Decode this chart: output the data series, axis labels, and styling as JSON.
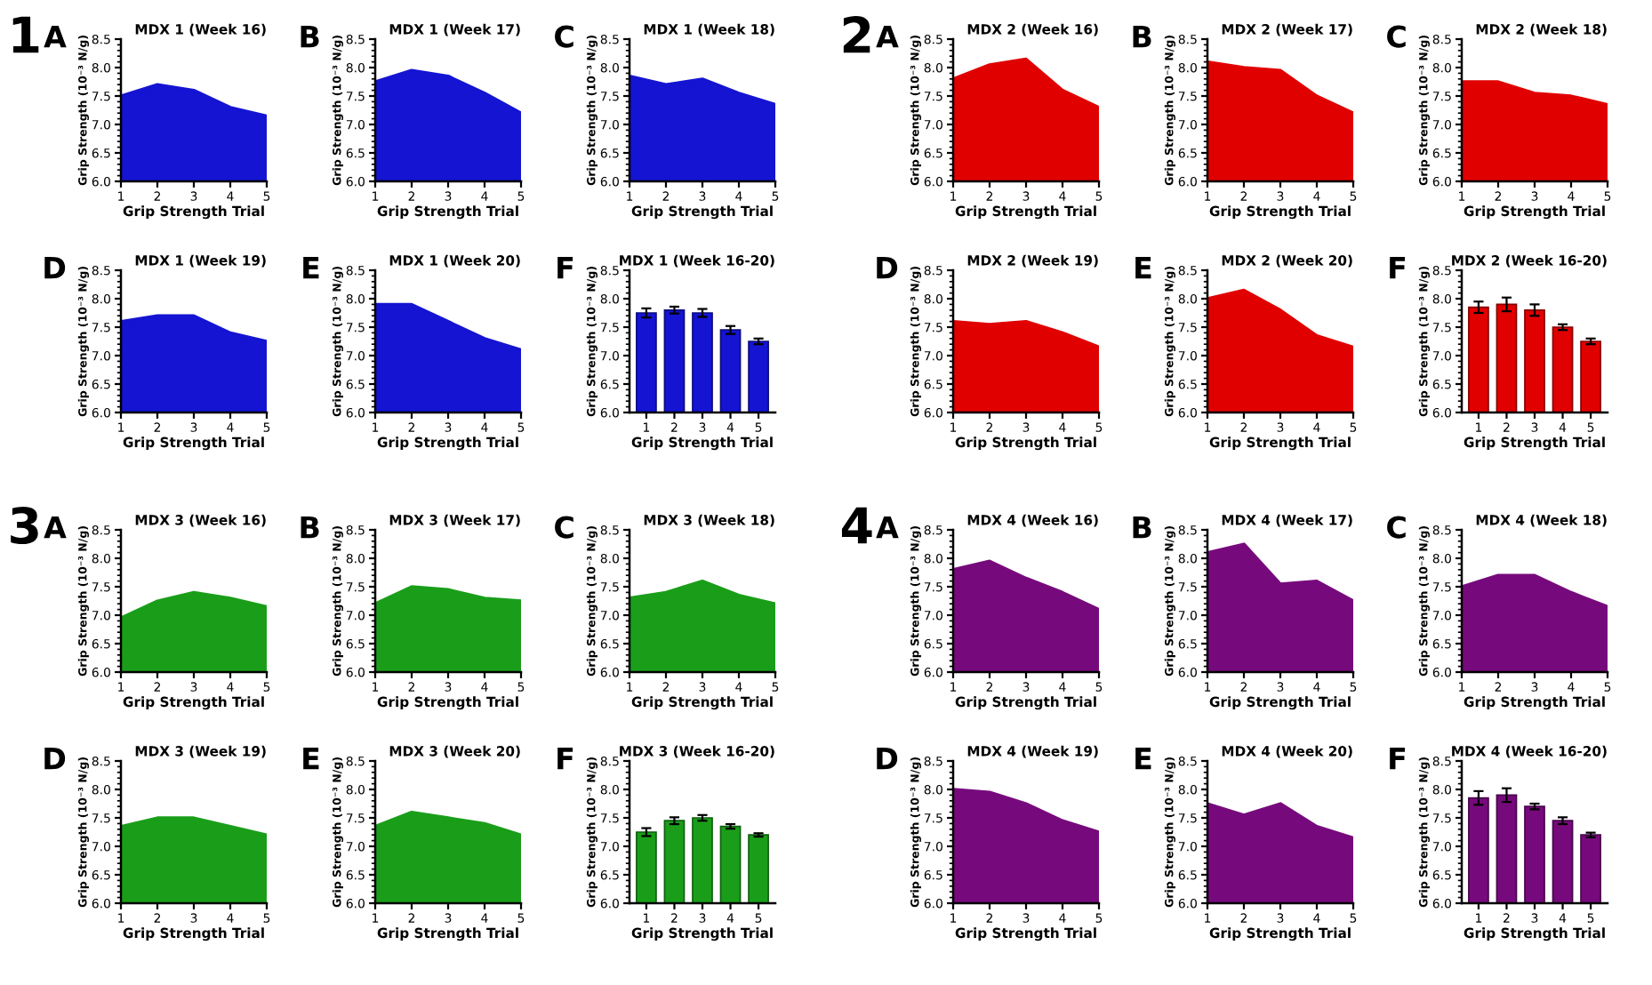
{
  "chart_data": [
    {
      "type": "area",
      "title": "MDX 1 (Week 16)",
      "annotations": [
        "1",
        "A"
      ],
      "xlabel": "Grip Strength Trial",
      "ylabel": "Grip Strength (10⁻³ N/g)",
      "color": "#1414d2",
      "x": [
        1,
        2,
        3,
        4,
        5
      ],
      "values": [
        7.5,
        7.7,
        7.6,
        7.3,
        7.15
      ],
      "xlim": [
        1,
        5
      ],
      "xticks": [
        1,
        2,
        3,
        4,
        5
      ],
      "ylim": [
        6,
        8.5
      ],
      "yticks": [
        {
          "value": 6,
          "label": "6.0"
        },
        6.5,
        {
          "value": 7,
          "label": "7.0"
        },
        7.5,
        {
          "value": 8,
          "label": "8.0"
        },
        8.5
      ]
    },
    {
      "type": "area",
      "title": "MDX 1 (Week 17)",
      "annotations": [
        "B"
      ],
      "xlabel": "Grip Strength Trial",
      "ylabel": "Grip Strength (10⁻³ N/g)",
      "color": "#1414d2",
      "x": [
        1,
        2,
        3,
        4,
        5
      ],
      "values": [
        7.75,
        7.95,
        7.85,
        7.55,
        7.2
      ],
      "xlim": [
        1,
        5
      ],
      "xticks": [
        1,
        2,
        3,
        4,
        5
      ],
      "ylim": [
        6,
        8.5
      ],
      "yticks": [
        {
          "value": 6,
          "label": "6.0"
        },
        6.5,
        {
          "value": 7,
          "label": "7.0"
        },
        7.5,
        {
          "value": 8,
          "label": "8.0"
        },
        8.5
      ]
    },
    {
      "type": "area",
      "title": "MDX 1 (Week 18)",
      "annotations": [
        "C"
      ],
      "xlabel": "Grip Strength Trial",
      "ylabel": "Grip Strength (10⁻³ N/g)",
      "color": "#1414d2",
      "x": [
        1,
        2,
        3,
        4,
        5
      ],
      "values": [
        7.85,
        7.7,
        7.8,
        7.55,
        7.35
      ],
      "xlim": [
        1,
        5
      ],
      "xticks": [
        1,
        2,
        3,
        4,
        5
      ],
      "ylim": [
        6,
        8.5
      ],
      "yticks": [
        {
          "value": 6,
          "label": "6.0"
        },
        6.5,
        {
          "value": 7,
          "label": "7.0"
        },
        7.5,
        {
          "value": 8,
          "label": "8.0"
        },
        8.5
      ]
    },
    {
      "type": "area",
      "title": "MDX 1 (Week 19)",
      "annotations": [
        "D"
      ],
      "xlabel": "Grip Strength Trial",
      "ylabel": "Grip Strength (10⁻³ N/g)",
      "color": "#1414d2",
      "x": [
        1,
        2,
        3,
        4,
        5
      ],
      "values": [
        7.6,
        7.7,
        7.7,
        7.4,
        7.25
      ],
      "xlim": [
        1,
        5
      ],
      "xticks": [
        1,
        2,
        3,
        4,
        5
      ],
      "ylim": [
        6,
        8.5
      ],
      "yticks": [
        {
          "value": 6,
          "label": "6.0"
        },
        6.5,
        {
          "value": 7,
          "label": "7.0"
        },
        7.5,
        {
          "value": 8,
          "label": "8.0"
        },
        8.5
      ]
    },
    {
      "type": "area",
      "title": "MDX 1 (Week 20)",
      "annotations": [
        "E"
      ],
      "xlabel": "Grip Strength Trial",
      "ylabel": "Grip Strength (10⁻³ N/g)",
      "color": "#1414d2",
      "x": [
        1,
        2,
        3,
        4,
        5
      ],
      "values": [
        7.9,
        7.9,
        7.6,
        7.3,
        7.1
      ],
      "xlim": [
        1,
        5
      ],
      "xticks": [
        1,
        2,
        3,
        4,
        5
      ],
      "ylim": [
        6,
        8.5
      ],
      "yticks": [
        {
          "value": 6,
          "label": "6.0"
        },
        6.5,
        {
          "value": 7,
          "label": "7.0"
        },
        7.5,
        {
          "value": 8,
          "label": "8.0"
        },
        8.5
      ]
    },
    {
      "type": "bar",
      "title": "MDX 1 (Week 16-20)",
      "annotations": [
        "F"
      ],
      "xlabel": "Grip Strength Trial",
      "ylabel": "Grip Strength (10⁻³ N/g)",
      "color": "#1414d2",
      "categories": [
        "1",
        "2",
        "3",
        "4",
        "5"
      ],
      "values": [
        7.75,
        7.8,
        7.75,
        7.45,
        7.25
      ],
      "errors": [
        0.08,
        0.06,
        0.07,
        0.07,
        0.05
      ],
      "ylim": [
        6,
        8.5
      ],
      "yticks": [
        {
          "value": 6,
          "label": "6.0"
        },
        6.5,
        {
          "value": 7,
          "label": "7.0"
        },
        7.5,
        {
          "value": 8,
          "label": "8.0"
        },
        8.5
      ]
    },
    {
      "type": "area",
      "title": "MDX 2 (Week 16)",
      "annotations": [
        "2",
        "A"
      ],
      "xlabel": "Grip Strength Trial",
      "ylabel": "Grip Strength (10⁻³ N/g)",
      "color": "#e00000",
      "x": [
        1,
        2,
        3,
        4,
        5
      ],
      "values": [
        7.8,
        8.05,
        8.15,
        7.6,
        7.3
      ],
      "xlim": [
        1,
        5
      ],
      "xticks": [
        1,
        2,
        3,
        4,
        5
      ],
      "ylim": [
        6,
        8.5
      ],
      "yticks": [
        {
          "value": 6,
          "label": "6.0"
        },
        6.5,
        {
          "value": 7,
          "label": "7.0"
        },
        7.5,
        {
          "value": 8,
          "label": "8.0"
        },
        8.5
      ]
    },
    {
      "type": "area",
      "title": "MDX 2 (Week 17)",
      "annotations": [
        "B"
      ],
      "xlabel": "Grip Strength Trial",
      "ylabel": "Grip Strength (10⁻³ N/g)",
      "color": "#e00000",
      "x": [
        1,
        2,
        3,
        4,
        5
      ],
      "values": [
        8.1,
        8.0,
        7.95,
        7.5,
        7.2
      ],
      "xlim": [
        1,
        5
      ],
      "xticks": [
        1,
        2,
        3,
        4,
        5
      ],
      "ylim": [
        6,
        8.5
      ],
      "yticks": [
        {
          "value": 6,
          "label": "6.0"
        },
        6.5,
        {
          "value": 7,
          "label": "7.0"
        },
        7.5,
        {
          "value": 8,
          "label": "8.0"
        },
        8.5
      ]
    },
    {
      "type": "area",
      "title": "MDX 2 (Week 18)",
      "annotations": [
        "C"
      ],
      "xlabel": "Grip Strength Trial",
      "ylabel": "Grip Strength (10⁻³ N/g)",
      "color": "#e00000",
      "x": [
        1,
        2,
        3,
        4,
        5
      ],
      "values": [
        7.75,
        7.75,
        7.55,
        7.5,
        7.35
      ],
      "xlim": [
        1,
        5
      ],
      "xticks": [
        1,
        2,
        3,
        4,
        5
      ],
      "ylim": [
        6,
        8.5
      ],
      "yticks": [
        {
          "value": 6,
          "label": "6.0"
        },
        6.5,
        {
          "value": 7,
          "label": "7.0"
        },
        7.5,
        {
          "value": 8,
          "label": "8.0"
        },
        8.5
      ]
    },
    {
      "type": "area",
      "title": "MDX 2 (Week 19)",
      "annotations": [
        "D"
      ],
      "xlabel": "Grip Strength Trial",
      "ylabel": "Grip Strength (10⁻³ N/g)",
      "color": "#e00000",
      "x": [
        1,
        2,
        3,
        4,
        5
      ],
      "values": [
        7.6,
        7.55,
        7.6,
        7.4,
        7.15
      ],
      "xlim": [
        1,
        5
      ],
      "xticks": [
        1,
        2,
        3,
        4,
        5
      ],
      "ylim": [
        6,
        8.5
      ],
      "yticks": [
        {
          "value": 6,
          "label": "6.0"
        },
        6.5,
        {
          "value": 7,
          "label": "7.0"
        },
        7.5,
        {
          "value": 8,
          "label": "8.0"
        },
        8.5
      ]
    },
    {
      "type": "area",
      "title": "MDX 2 (Week 20)",
      "annotations": [
        "E"
      ],
      "xlabel": "Grip Strength Trial",
      "ylabel": "Grip Strength (10⁻³ N/g)",
      "color": "#e00000",
      "x": [
        1,
        2,
        3,
        4,
        5
      ],
      "values": [
        8.0,
        8.15,
        7.8,
        7.35,
        7.15
      ],
      "xlim": [
        1,
        5
      ],
      "xticks": [
        1,
        2,
        3,
        4,
        5
      ],
      "ylim": [
        6,
        8.5
      ],
      "yticks": [
        {
          "value": 6,
          "label": "6.0"
        },
        6.5,
        {
          "value": 7,
          "label": "7.0"
        },
        7.5,
        {
          "value": 8,
          "label": "8.0"
        },
        8.5
      ]
    },
    {
      "type": "bar",
      "title": "MDX 2 (Week 16-20)",
      "annotations": [
        "F"
      ],
      "xlabel": "Grip Strength Trial",
      "ylabel": "Grip Strength (10⁻³ N/g)",
      "color": "#e00000",
      "categories": [
        "1",
        "2",
        "3",
        "4",
        "5"
      ],
      "values": [
        7.85,
        7.9,
        7.8,
        7.5,
        7.25
      ],
      "errors": [
        0.1,
        0.12,
        0.1,
        0.05,
        0.05
      ],
      "ylim": [
        6,
        8.5
      ],
      "yticks": [
        {
          "value": 6,
          "label": "6.0"
        },
        6.5,
        {
          "value": 7,
          "label": "7.0"
        },
        7.5,
        {
          "value": 8,
          "label": "8.0"
        },
        8.5
      ]
    },
    {
      "type": "area",
      "title": "MDX 3 (Week 16)",
      "annotations": [
        "3",
        "A"
      ],
      "xlabel": "Grip Strength Trial",
      "ylabel": "Grip Strength (10⁻³ N/g)",
      "color": "#1a9e1a",
      "x": [
        1,
        2,
        3,
        4,
        5
      ],
      "values": [
        6.95,
        7.25,
        7.4,
        7.3,
        7.15
      ],
      "xlim": [
        1,
        5
      ],
      "xticks": [
        1,
        2,
        3,
        4,
        5
      ],
      "ylim": [
        6,
        8.5
      ],
      "yticks": [
        {
          "value": 6,
          "label": "6.0"
        },
        6.5,
        {
          "value": 7,
          "label": "7.0"
        },
        7.5,
        {
          "value": 8,
          "label": "8.0"
        },
        8.5
      ]
    },
    {
      "type": "area",
      "title": "MDX 3 (Week 17)",
      "annotations": [
        "B"
      ],
      "xlabel": "Grip Strength Trial",
      "ylabel": "Grip Strength (10⁻³ N/g)",
      "color": "#1a9e1a",
      "x": [
        1,
        2,
        3,
        4,
        5
      ],
      "values": [
        7.2,
        7.5,
        7.45,
        7.3,
        7.25
      ],
      "xlim": [
        1,
        5
      ],
      "xticks": [
        1,
        2,
        3,
        4,
        5
      ],
      "ylim": [
        6,
        8.5
      ],
      "yticks": [
        {
          "value": 6,
          "label": "6.0"
        },
        6.5,
        {
          "value": 7,
          "label": "7.0"
        },
        7.5,
        {
          "value": 8,
          "label": "8.0"
        },
        8.5
      ]
    },
    {
      "type": "area",
      "title": "MDX 3 (Week 18)",
      "annotations": [
        "C"
      ],
      "xlabel": "Grip Strength Trial",
      "ylabel": "Grip Strength (10⁻³ N/g)",
      "color": "#1a9e1a",
      "x": [
        1,
        2,
        3,
        4,
        5
      ],
      "values": [
        7.3,
        7.4,
        7.6,
        7.35,
        7.2
      ],
      "xlim": [
        1,
        5
      ],
      "xticks": [
        1,
        2,
        3,
        4,
        5
      ],
      "ylim": [
        6,
        8.5
      ],
      "yticks": [
        {
          "value": 6,
          "label": "6.0"
        },
        6.5,
        {
          "value": 7,
          "label": "7.0"
        },
        7.5,
        {
          "value": 8,
          "label": "8.0"
        },
        8.5
      ]
    },
    {
      "type": "area",
      "title": "MDX 3 (Week 19)",
      "annotations": [
        "D"
      ],
      "xlabel": "Grip Strength Trial",
      "ylabel": "Grip Strength (10⁻³ N/g)",
      "color": "#1a9e1a",
      "x": [
        1,
        2,
        3,
        4,
        5
      ],
      "values": [
        7.35,
        7.5,
        7.5,
        7.35,
        7.2
      ],
      "xlim": [
        1,
        5
      ],
      "xticks": [
        1,
        2,
        3,
        4,
        5
      ],
      "ylim": [
        6,
        8.5
      ],
      "yticks": [
        {
          "value": 6,
          "label": "6.0"
        },
        6.5,
        {
          "value": 7,
          "label": "7.0"
        },
        7.5,
        {
          "value": 8,
          "label": "8.0"
        },
        8.5
      ]
    },
    {
      "type": "area",
      "title": "MDX 3 (Week 20)",
      "annotations": [
        "E"
      ],
      "xlabel": "Grip Strength Trial",
      "ylabel": "Grip Strength (10⁻³ N/g)",
      "color": "#1a9e1a",
      "x": [
        1,
        2,
        3,
        4,
        5
      ],
      "values": [
        7.35,
        7.6,
        7.5,
        7.4,
        7.2
      ],
      "xlim": [
        1,
        5
      ],
      "xticks": [
        1,
        2,
        3,
        4,
        5
      ],
      "ylim": [
        6,
        8.5
      ],
      "yticks": [
        {
          "value": 6,
          "label": "6.0"
        },
        6.5,
        {
          "value": 7,
          "label": "7.0"
        },
        7.5,
        {
          "value": 8,
          "label": "8.0"
        },
        8.5
      ]
    },
    {
      "type": "bar",
      "title": "MDX 3 (Week 16-20)",
      "annotations": [
        "F"
      ],
      "xlabel": "Grip Strength Trial",
      "ylabel": "Grip Strength (10⁻³ N/g)",
      "color": "#1a9e1a",
      "categories": [
        "1",
        "2",
        "3",
        "4",
        "5"
      ],
      "values": [
        7.25,
        7.45,
        7.5,
        7.35,
        7.2
      ],
      "errors": [
        0.07,
        0.06,
        0.05,
        0.04,
        0.03
      ],
      "ylim": [
        6,
        8.5
      ],
      "yticks": [
        {
          "value": 6,
          "label": "6.0"
        },
        6.5,
        {
          "value": 7,
          "label": "7.0"
        },
        7.5,
        {
          "value": 8,
          "label": "8.0"
        },
        8.5
      ]
    },
    {
      "type": "area",
      "title": "MDX 4 (Week 16)",
      "annotations": [
        "4",
        "A"
      ],
      "xlabel": "Grip Strength Trial",
      "ylabel": "Grip Strength (10⁻³ N/g)",
      "color": "#760a7c",
      "x": [
        1,
        2,
        3,
        4,
        5
      ],
      "values": [
        7.8,
        7.95,
        7.65,
        7.4,
        7.1
      ],
      "xlim": [
        1,
        5
      ],
      "xticks": [
        1,
        2,
        3,
        4,
        5
      ],
      "ylim": [
        6,
        8.5
      ],
      "yticks": [
        {
          "value": 6,
          "label": "6.0"
        },
        6.5,
        {
          "value": 7,
          "label": "7.0"
        },
        7.5,
        {
          "value": 8,
          "label": "8.0"
        },
        8.5
      ]
    },
    {
      "type": "area",
      "title": "MDX 4 (Week 17)",
      "annotations": [
        "B"
      ],
      "xlabel": "Grip Strength Trial",
      "ylabel": "Grip Strength (10⁻³ N/g)",
      "color": "#760a7c",
      "x": [
        1,
        2,
        3,
        4,
        5
      ],
      "values": [
        8.1,
        8.25,
        7.55,
        7.6,
        7.25
      ],
      "xlim": [
        1,
        5
      ],
      "xticks": [
        1,
        2,
        3,
        4,
        5
      ],
      "ylim": [
        6,
        8.5
      ],
      "yticks": [
        {
          "value": 6,
          "label": "6.0"
        },
        6.5,
        {
          "value": 7,
          "label": "7.0"
        },
        7.5,
        {
          "value": 8,
          "label": "8.0"
        },
        8.5
      ]
    },
    {
      "type": "area",
      "title": "MDX 4 (Week 18)",
      "annotations": [
        "C"
      ],
      "xlabel": "Grip Strength Trial",
      "ylabel": "Grip Strength (10⁻³ N/g)",
      "color": "#760a7c",
      "x": [
        1,
        2,
        3,
        4,
        5
      ],
      "values": [
        7.5,
        7.7,
        7.7,
        7.4,
        7.15
      ],
      "xlim": [
        1,
        5
      ],
      "xticks": [
        1,
        2,
        3,
        4,
        5
      ],
      "ylim": [
        6,
        8.5
      ],
      "yticks": [
        {
          "value": 6,
          "label": "6.0"
        },
        6.5,
        {
          "value": 7,
          "label": "7.0"
        },
        7.5,
        {
          "value": 8,
          "label": "8.0"
        },
        8.5
      ]
    },
    {
      "type": "area",
      "title": "MDX 4 (Week 19)",
      "annotations": [
        "D"
      ],
      "xlabel": "Grip Strength Trial",
      "ylabel": "Grip Strength (10⁻³ N/g)",
      "color": "#760a7c",
      "x": [
        1,
        2,
        3,
        4,
        5
      ],
      "values": [
        8.0,
        7.95,
        7.75,
        7.45,
        7.25
      ],
      "xlim": [
        1,
        5
      ],
      "xticks": [
        1,
        2,
        3,
        4,
        5
      ],
      "ylim": [
        6,
        8.5
      ],
      "yticks": [
        {
          "value": 6,
          "label": "6.0"
        },
        6.5,
        {
          "value": 7,
          "label": "7.0"
        },
        7.5,
        {
          "value": 8,
          "label": "8.0"
        },
        8.5
      ]
    },
    {
      "type": "area",
      "title": "MDX 4 (Week 20)",
      "annotations": [
        "E"
      ],
      "xlabel": "Grip Strength Trial",
      "ylabel": "Grip Strength (10⁻³ N/g)",
      "color": "#760a7c",
      "x": [
        1,
        2,
        3,
        4,
        5
      ],
      "values": [
        7.75,
        7.55,
        7.75,
        7.35,
        7.15
      ],
      "xlim": [
        1,
        5
      ],
      "xticks": [
        1,
        2,
        3,
        4,
        5
      ],
      "ylim": [
        6,
        8.5
      ],
      "yticks": [
        {
          "value": 6,
          "label": "6.0"
        },
        6.5,
        {
          "value": 7,
          "label": "7.0"
        },
        7.5,
        {
          "value": 8,
          "label": "8.0"
        },
        8.5
      ]
    },
    {
      "type": "bar",
      "title": "MDX 4 (Week 16-20)",
      "annotations": [
        "F"
      ],
      "xlabel": "Grip Strength Trial",
      "ylabel": "Grip Strength (10⁻³ N/g)",
      "color": "#760a7c",
      "categories": [
        "1",
        "2",
        "3",
        "4",
        "5"
      ],
      "values": [
        7.85,
        7.9,
        7.7,
        7.45,
        7.2
      ],
      "errors": [
        0.12,
        0.12,
        0.05,
        0.06,
        0.04
      ],
      "ylim": [
        6,
        8.5
      ],
      "yticks": [
        {
          "value": 6,
          "label": "6.0"
        },
        6.5,
        {
          "value": 7,
          "label": "7.0"
        },
        7.5,
        {
          "value": 8,
          "label": "8.0"
        },
        8.5
      ]
    }
  ]
}
